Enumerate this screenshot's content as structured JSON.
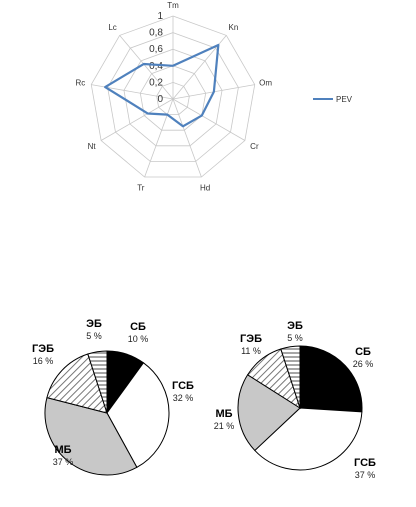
{
  "chart_data": [
    {
      "type": "radar",
      "axes": [
        "Tm",
        "Kn",
        "Om",
        "Cr",
        "Hd",
        "Tr",
        "Nt",
        "Rc",
        "Lc"
      ],
      "ticks": [
        "0",
        "0,2",
        "0,4",
        "0,6",
        "0,8",
        "1"
      ],
      "range": [
        0,
        1
      ],
      "series": [
        {
          "name": "PEV",
          "values": [
            0.4,
            0.85,
            0.5,
            0.4,
            0.35,
            0.2,
            0.35,
            0.83,
            0.55
          ],
          "color": "#4f81bd"
        }
      ],
      "legend": "right"
    },
    {
      "type": "pie",
      "slices": [
        {
          "label": "СБ",
          "pct": "10 %",
          "value": 10,
          "fill": "#000000"
        },
        {
          "label": "ГСБ",
          "pct": "32 %",
          "value": 32,
          "fill": "#ffffff"
        },
        {
          "label": "МБ",
          "pct": "37 %",
          "value": 37,
          "fill": "#c8c8c8"
        },
        {
          "label": "ГЭБ",
          "pct": "16 %",
          "value": 16,
          "fill": "diagonal"
        },
        {
          "label": "ЭБ",
          "pct": "5 %",
          "value": 5,
          "fill": "horizontal"
        }
      ]
    },
    {
      "type": "pie",
      "slices": [
        {
          "label": "СБ",
          "pct": "26 %",
          "value": 26,
          "fill": "#000000"
        },
        {
          "label": "ГСБ",
          "pct": "37 %",
          "value": 37,
          "fill": "#ffffff"
        },
        {
          "label": "МБ",
          "pct": "21 %",
          "value": 21,
          "fill": "#c8c8c8"
        },
        {
          "label": "ГЭБ",
          "pct": "11 %",
          "value": 11,
          "fill": "diagonal"
        },
        {
          "label": "ЭБ",
          "pct": "5 %",
          "value": 5,
          "fill": "horizontal"
        }
      ]
    }
  ]
}
